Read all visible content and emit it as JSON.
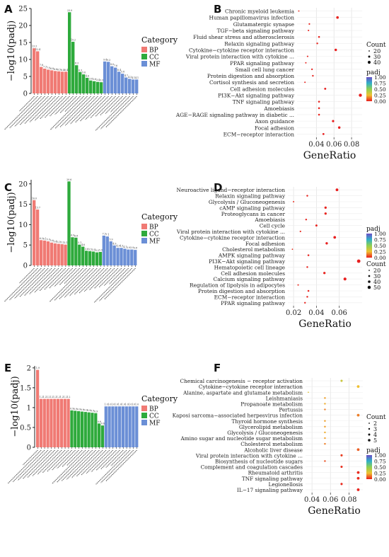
{
  "chart_data": [
    {
      "panel": "A",
      "type": "bar",
      "ylabel": "−log10(padj)",
      "ylim": [
        0,
        25
      ],
      "yticks": [
        0,
        5,
        10,
        15,
        20,
        25
      ],
      "legend": {
        "title": "Category",
        "entries": [
          "BP",
          "CC",
          "MF"
        ]
      },
      "groups": [
        {
          "name": "BP",
          "values": [
            13.3,
            12.4,
            7.8,
            7.3,
            7.0,
            6.8,
            6.6,
            6.5,
            6.4,
            6.4
          ]
        },
        {
          "name": "CC",
          "values": [
            23.9,
            15.2,
            8.3,
            6.3,
            5.6,
            4.6,
            3.8,
            3.6,
            3.4,
            3.3
          ]
        },
        {
          "name": "MF",
          "values": [
            9.4,
            9.3,
            8.0,
            7.6,
            6.4,
            5.8,
            4.7,
            4.3,
            4.1,
            4.1
          ]
        }
      ]
    },
    {
      "panel": "B",
      "type": "scatter",
      "xlabel": "GeneRatio",
      "xlim": [
        0.018,
        0.092
      ],
      "xticks": [
        0.04,
        0.06,
        0.08
      ],
      "terms": [
        "Chronic myeloid leukemia",
        "Human papillomavirus infection",
        "Glutamatergic synapse",
        "TGF−beta signaling pathway",
        "Fluid shear stress and atherosclerosis",
        "Relaxin signaling pathway",
        "Cytokine−cytokine receptor interaction",
        "Viral protein interaction with cytokine ...",
        "PPAR signaling pathway",
        "Small cell lung cancer",
        "Protein digestion and absorption",
        "Cortisol synthesis and secretion",
        "Cell adhesion molecules",
        "PI3K−Akt signaling pathway",
        "TNF signaling pathway",
        "Amoebiasis",
        "AGE−RAGE signaling pathway in diabetic ...",
        "Axon guidance",
        "Focal adhesion",
        "ECM−receptor interaction"
      ],
      "gene_ratio": [
        0.02,
        0.064,
        0.032,
        0.031,
        0.043,
        0.041,
        0.062,
        0.03,
        0.028,
        0.035,
        0.036,
        0.027,
        0.05,
        0.09,
        0.043,
        0.043,
        0.043,
        0.059,
        0.066,
        0.048
      ],
      "count": [
        8,
        27,
        12,
        11,
        16,
        15,
        25,
        11,
        10,
        13,
        13,
        10,
        19,
        35,
        16,
        16,
        16,
        22,
        25,
        18
      ],
      "padj": [
        0.02,
        0.01,
        0.01,
        0.01,
        0.01,
        0.01,
        0.0,
        0.01,
        0.01,
        0.01,
        0.01,
        0.01,
        0.0,
        0.0,
        0.01,
        0.01,
        0.01,
        0.0,
        0.0,
        0.0
      ],
      "size_legend": {
        "title": "Count",
        "values": [
          20,
          30,
          40
        ]
      },
      "color_legend": {
        "title": "padj",
        "ticks": [
          "1.00",
          "0.75",
          "0.50",
          "0.25",
          "0.00"
        ]
      }
    },
    {
      "panel": "C",
      "type": "bar",
      "ylabel": "−log10(padj)",
      "ylim": [
        0,
        21
      ],
      "yticks": [
        0,
        5,
        10,
        15,
        20
      ],
      "legend": {
        "title": "Category",
        "entries": [
          "BP",
          "CC",
          "MF"
        ]
      },
      "groups": [
        {
          "name": "BP",
          "values": [
            16.0,
            13.7,
            6.2,
            6.1,
            5.9,
            5.6,
            5.4,
            5.3,
            5.2,
            5.1
          ]
        },
        {
          "name": "CC",
          "values": [
            20.6,
            6.9,
            6.8,
            5.1,
            4.6,
            3.6,
            3.5,
            3.4,
            3.2,
            3.3
          ]
        },
        {
          "name": "MF",
          "values": [
            7.3,
            7.1,
            5.9,
            4.9,
            4.3,
            4.3,
            4.1,
            3.9,
            3.9,
            3.8
          ]
        }
      ]
    },
    {
      "panel": "D",
      "type": "scatter",
      "xlabel": "GeneRatio",
      "xlim": [
        0.015,
        0.08
      ],
      "xticks": [
        0.02,
        0.04,
        0.06
      ],
      "terms": [
        "Neuroactive ligand−receptor interaction",
        "Relaxin signaling pathway",
        "Glycolysis / Gluconeogenesis",
        "cAMP signaling pathway",
        "Proteoglycans in cancer",
        "Amoebiasis",
        "Cell cycle",
        "Viral protein interaction with cytokine ...",
        "Cytokine−cytokine receptor interaction",
        "Focal adhesion",
        "Cholesterol metabolism",
        "AMPK signaling pathway",
        "PI3K−Akt signaling pathway",
        "Hematopoietic cell lineage",
        "Cell adhesion molecules",
        "Calcium signaling pathway",
        "Regulation of lipolysis in adipocytes",
        "Protein digestion and absorption",
        "ECM−receptor interaction",
        "PPAR signaling pathway"
      ],
      "gene_ratio": [
        0.058,
        0.032,
        0.02,
        0.048,
        0.048,
        0.031,
        0.04,
        0.026,
        0.056,
        0.049,
        0.019,
        0.033,
        0.077,
        0.032,
        0.047,
        0.065,
        0.024,
        0.033,
        0.032,
        0.03
      ],
      "count": [
        33,
        18,
        12,
        27,
        27,
        18,
        23,
        15,
        32,
        28,
        11,
        19,
        44,
        18,
        27,
        37,
        14,
        19,
        18,
        17
      ],
      "padj": [
        0.0,
        0.01,
        0.02,
        0.01,
        0.01,
        0.01,
        0.01,
        0.02,
        0.0,
        0.0,
        0.03,
        0.01,
        0.0,
        0.01,
        0.01,
        0.0,
        0.02,
        0.01,
        0.01,
        0.01
      ],
      "size_legend": {
        "title": "Count",
        "values": [
          20,
          30,
          40,
          50
        ]
      },
      "color_legend": {
        "title": "padj",
        "ticks": [
          "1.00",
          "0.75",
          "0.50",
          "0.25",
          "0.00"
        ]
      }
    },
    {
      "panel": "E",
      "type": "bar",
      "ylabel": "−log10(padj)",
      "ylim": [
        0,
        2.05
      ],
      "yticks": [
        0.0,
        0.5,
        1.0,
        1.5,
        2.0
      ],
      "legend": {
        "title": "Category",
        "entries": [
          "BP",
          "CC",
          "MF"
        ]
      },
      "groups": [
        {
          "name": "BP",
          "values": [
            1.95,
            1.22,
            1.22,
            1.22,
            1.22,
            1.22,
            1.22,
            1.22,
            1.22,
            1.22
          ]
        },
        {
          "name": "CC",
          "values": [
            0.93,
            0.92,
            0.91,
            0.9,
            0.89,
            0.88,
            0.87,
            0.86,
            0.6,
            0.55
          ]
        },
        {
          "name": "MF",
          "values": [
            1.03,
            1.03,
            1.03,
            1.03,
            1.03,
            1.03,
            1.03,
            1.03,
            1.03,
            1.03
          ]
        }
      ]
    },
    {
      "panel": "F",
      "type": "scatter",
      "xlabel": "GeneRatio",
      "xlim": [
        0.033,
        0.095
      ],
      "xticks": [
        0.04,
        0.06,
        0.08
      ],
      "terms": [
        "Chemical carcinogenesis − receptor activation",
        "Cytokine−cytokine receptor interaction",
        "Alanine, aspartate and glutamate metabolism",
        "Leishmaniasis",
        "Propanoate metabolism",
        "Pertussis",
        "Kaposi sarcoma−associated herpesvirus infection",
        "Thyroid hormone synthesis",
        "Glycerolipid metabolism",
        "Glycolysis / Gluconeogenesis",
        "Amino sugar and nucleotide sugar metabolism",
        "Cholesterol metabolism",
        "Alcoholic liver disease",
        "Viral protein interaction with cytokine ...",
        "Biosynthesis of nucleotide sugars",
        "Complement and coagulation cascades",
        "Rheumatoid arthritis",
        "TNF signaling pathway",
        "Legionellosis",
        "IL−17 signaling pathway"
      ],
      "gene_ratio": [
        0.072,
        0.09,
        0.036,
        0.054,
        0.054,
        0.054,
        0.09,
        0.054,
        0.054,
        0.054,
        0.054,
        0.054,
        0.09,
        0.072,
        0.054,
        0.072,
        0.09,
        0.09,
        0.072,
        0.09
      ],
      "count": [
        4,
        5,
        2,
        3,
        3,
        3,
        5,
        3,
        3,
        3,
        3,
        3,
        5,
        4,
        3,
        4,
        5,
        5,
        4,
        5
      ],
      "padj": [
        0.35,
        0.25,
        0.3,
        0.2,
        0.22,
        0.15,
        0.15,
        0.2,
        0.2,
        0.22,
        0.2,
        0.15,
        0.1,
        0.05,
        0.08,
        0.03,
        0.02,
        0.02,
        0.02,
        0.01
      ],
      "size_legend": {
        "title": "Count",
        "values": [
          2,
          3,
          4,
          5
        ]
      },
      "color_legend": {
        "title": "padj",
        "ticks": [
          "1.00",
          "0.75",
          "0.50",
          "0.25",
          "0.00"
        ]
      }
    }
  ],
  "colors": {
    "BP": "#f07a74",
    "CC": "#2eaa3c",
    "MF": "#6b8fd6"
  }
}
